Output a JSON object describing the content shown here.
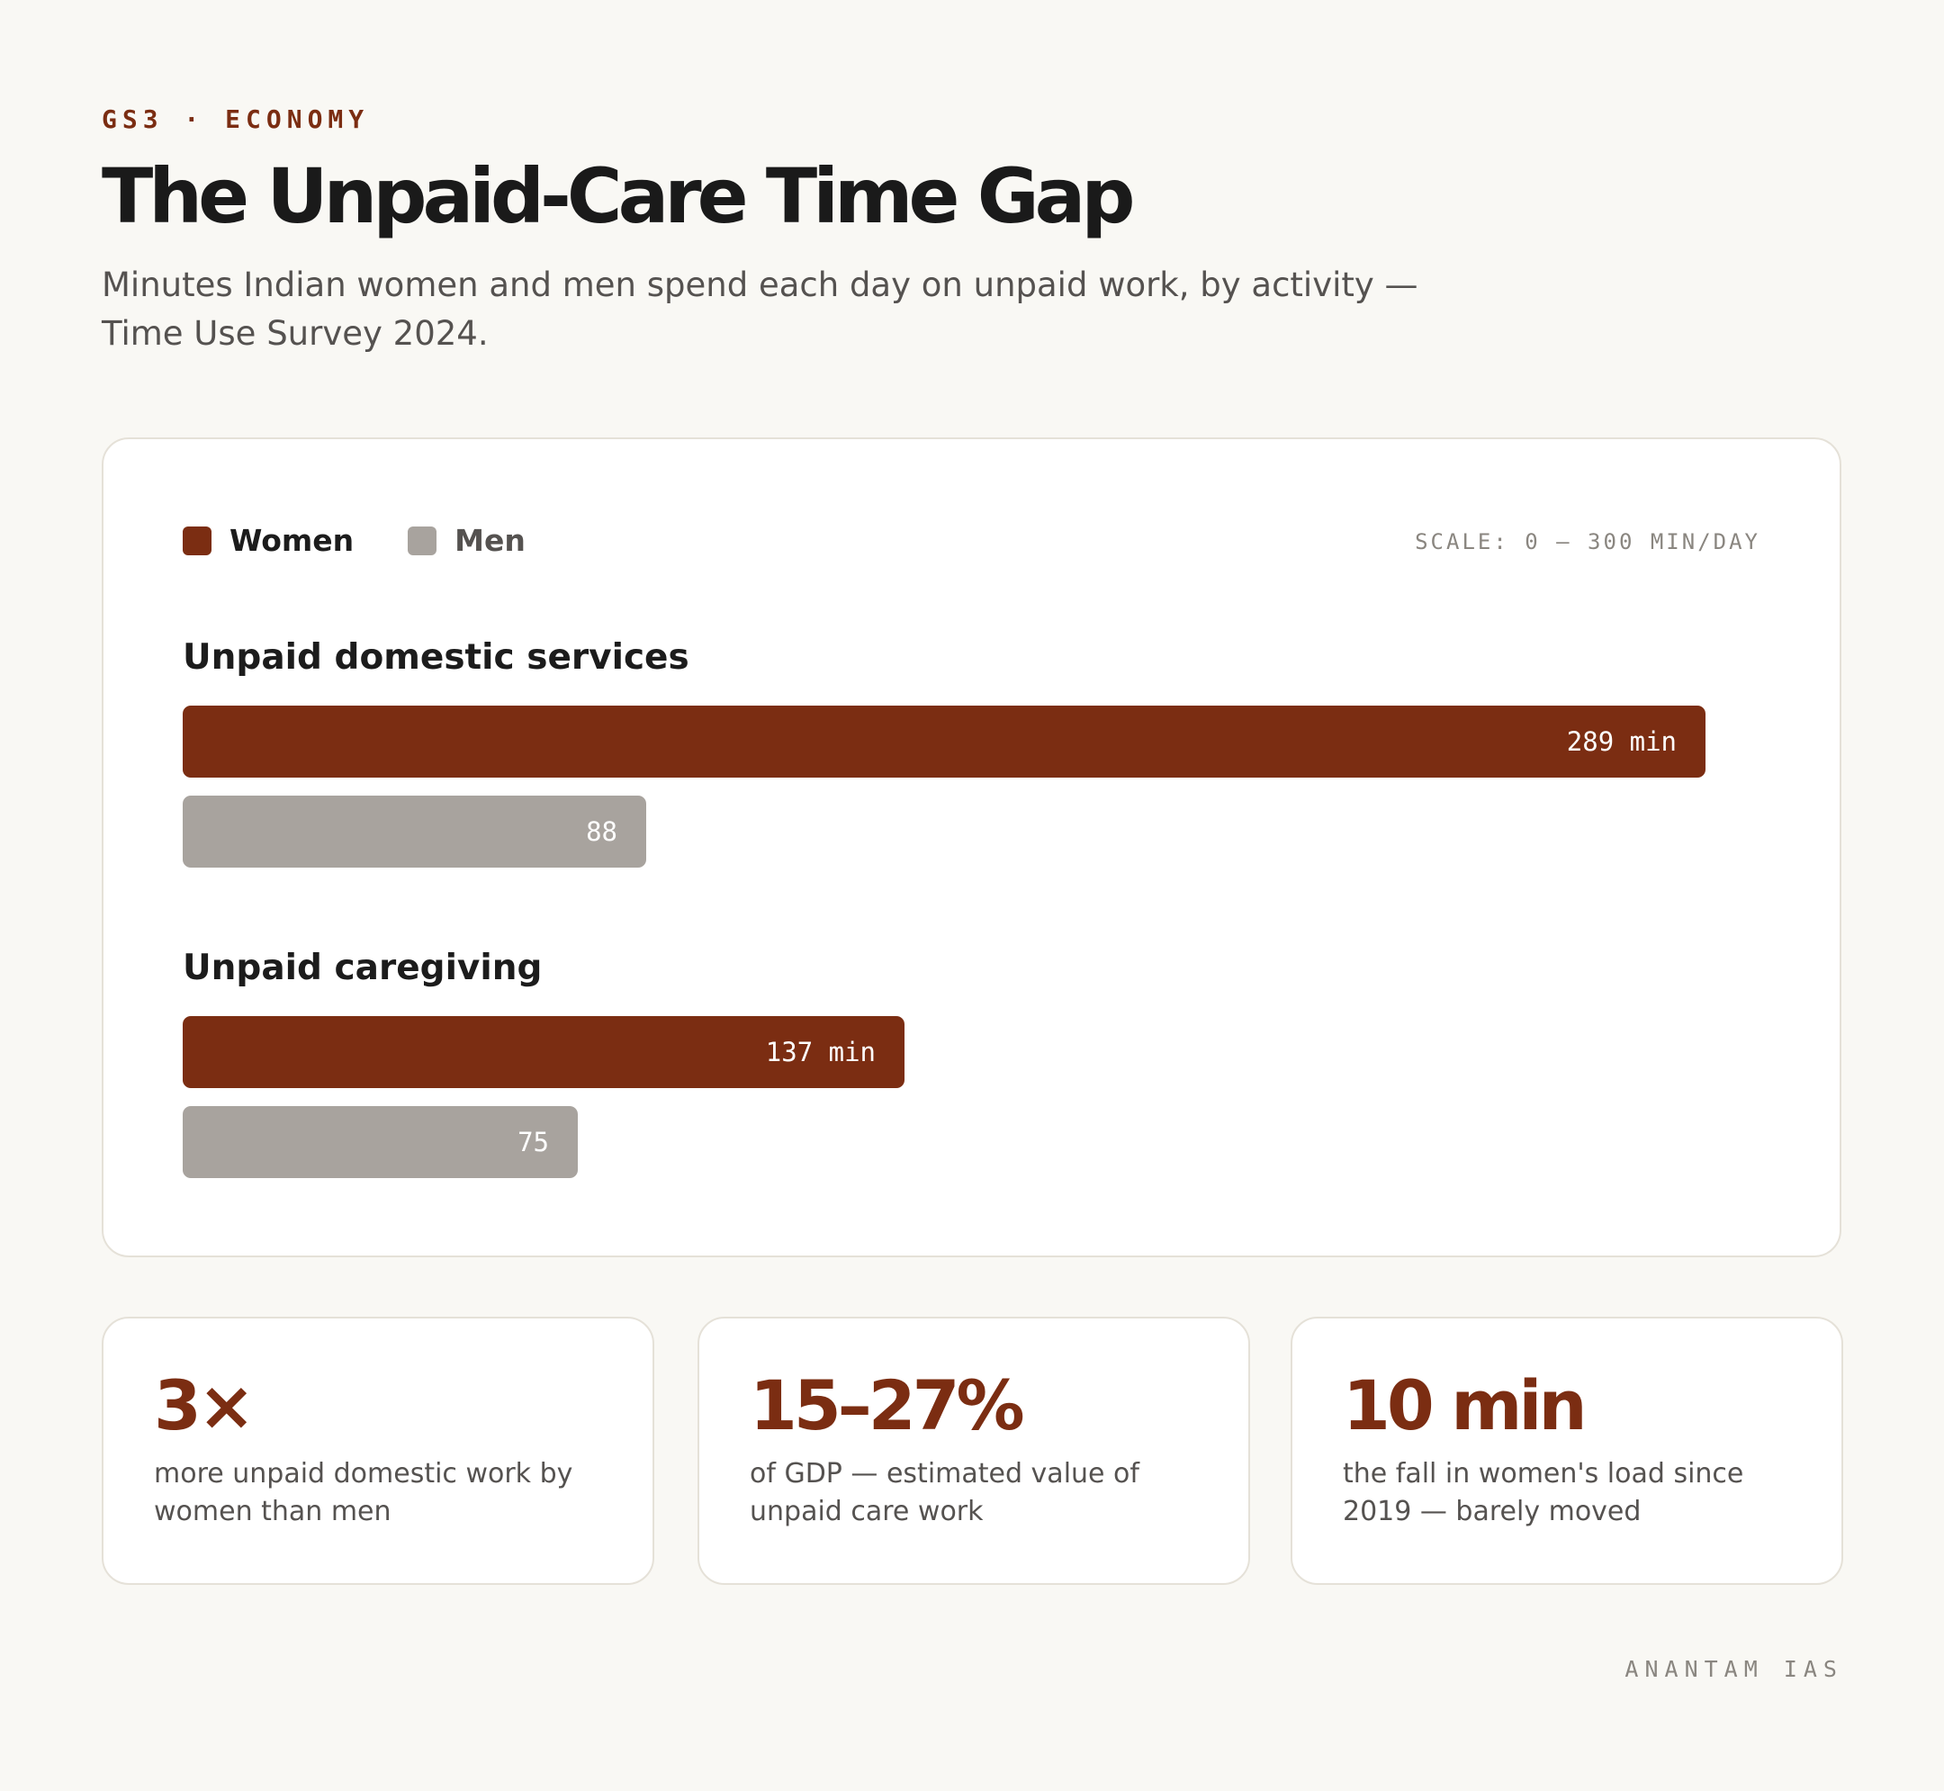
{
  "header": {
    "kicker": "GS3 · ECONOMY",
    "title": "The Unpaid-Care Time Gap",
    "subtitle": "Minutes Indian women and men spend each day on unpaid work, by activity — Time Use Survey 2024."
  },
  "legend": {
    "women": "Women",
    "men": "Men"
  },
  "scale_label": "SCALE: 0 — 300 MIN/DAY",
  "colors": {
    "women": "#7b2d12",
    "men": "#a8a39e",
    "accent": "#7b2d12"
  },
  "chart_data": {
    "type": "bar",
    "orientation": "horizontal",
    "categories": [
      "Unpaid domestic services",
      "Unpaid caregiving"
    ],
    "series": [
      {
        "name": "Women",
        "values": [
          289,
          137
        ],
        "labels": [
          "289 min",
          "137 min"
        ]
      },
      {
        "name": "Men",
        "values": [
          88,
          75
        ],
        "labels": [
          "88",
          "75"
        ]
      }
    ],
    "xlim": [
      0,
      300
    ],
    "legend_position": "top-left"
  },
  "stats": [
    {
      "value": "3×",
      "text": "more unpaid domestic work by women than men"
    },
    {
      "value": "15–27%",
      "text": "of GDP — estimated value of unpaid care work"
    },
    {
      "value": "10 min",
      "text": "the fall in women's load since 2019 — barely moved"
    }
  ],
  "footer": "ANANTAM IAS"
}
